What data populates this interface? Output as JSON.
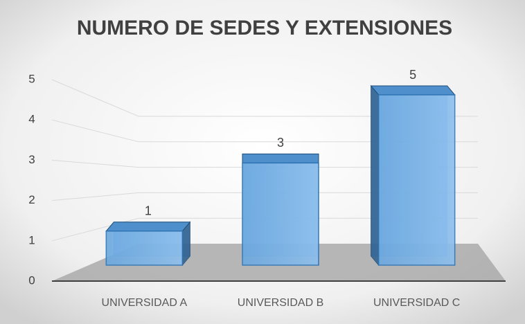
{
  "chart_data": {
    "type": "bar3d",
    "title": "NUMERO DE SEDES Y EXTENSIONES",
    "categories": [
      "UNIVERSIDAD A",
      "UNIVERSIDAD B",
      "UNIVERSIDAD C"
    ],
    "values": [
      1,
      3,
      5
    ],
    "color": "#5b9bd5",
    "ylim": [
      0,
      5
    ],
    "yticks": [
      0,
      1,
      2,
      3,
      4,
      5
    ],
    "grid": true
  }
}
